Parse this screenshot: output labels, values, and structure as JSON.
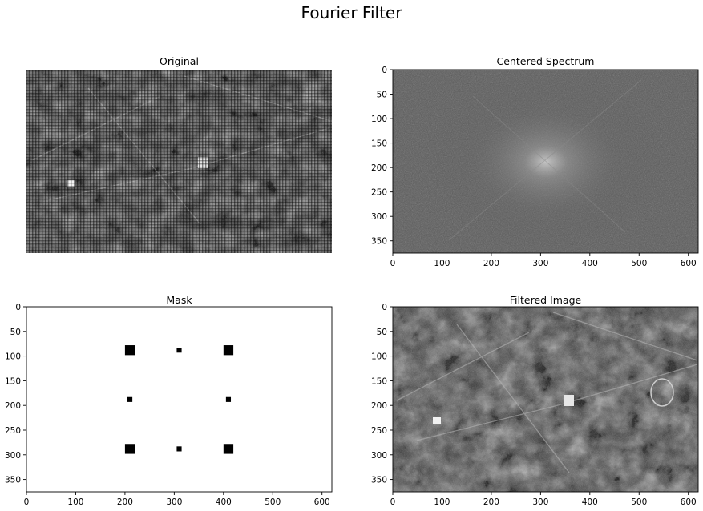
{
  "figure": {
    "title": "Fourier Filter"
  },
  "chart_data": [
    {
      "type": "image",
      "title": "Original",
      "axes_visible": false,
      "colormap": "gray",
      "content": "grayscale aerial photo with periodic grid noise"
    },
    {
      "type": "image",
      "title": "Centered Spectrum",
      "axes_visible": true,
      "colormap": "gray",
      "xlim": [
        0,
        620
      ],
      "ylim": [
        375,
        0
      ],
      "x_ticks": [
        0,
        100,
        200,
        300,
        400,
        500,
        600
      ],
      "y_ticks": [
        0,
        50,
        100,
        150,
        200,
        250,
        300,
        350
      ],
      "peak_center": [
        310,
        188
      ]
    },
    {
      "type": "image",
      "title": "Mask",
      "axes_visible": true,
      "colormap": "gray",
      "xlim": [
        0,
        620
      ],
      "ylim": [
        375,
        0
      ],
      "x_ticks": [
        0,
        100,
        200,
        300,
        400,
        500,
        600
      ],
      "y_ticks": [
        0,
        50,
        100,
        150,
        200,
        250,
        300,
        350
      ],
      "notches": [
        {
          "x": 210,
          "y": 88,
          "size": 20
        },
        {
          "x": 310,
          "y": 88,
          "size": 10
        },
        {
          "x": 410,
          "y": 88,
          "size": 20
        },
        {
          "x": 210,
          "y": 188,
          "size": 10
        },
        {
          "x": 410,
          "y": 188,
          "size": 10
        },
        {
          "x": 210,
          "y": 288,
          "size": 20
        },
        {
          "x": 310,
          "y": 288,
          "size": 10
        },
        {
          "x": 410,
          "y": 288,
          "size": 20
        }
      ]
    },
    {
      "type": "image",
      "title": "Filtered Image",
      "axes_visible": true,
      "colormap": "gray",
      "xlim": [
        0,
        620
      ],
      "ylim": [
        375,
        0
      ],
      "x_ticks": [
        0,
        100,
        200,
        300,
        400,
        500,
        600
      ],
      "y_ticks": [
        0,
        50,
        100,
        150,
        200,
        250,
        300,
        350
      ],
      "content": "grayscale aerial photo after notch filtering"
    }
  ]
}
